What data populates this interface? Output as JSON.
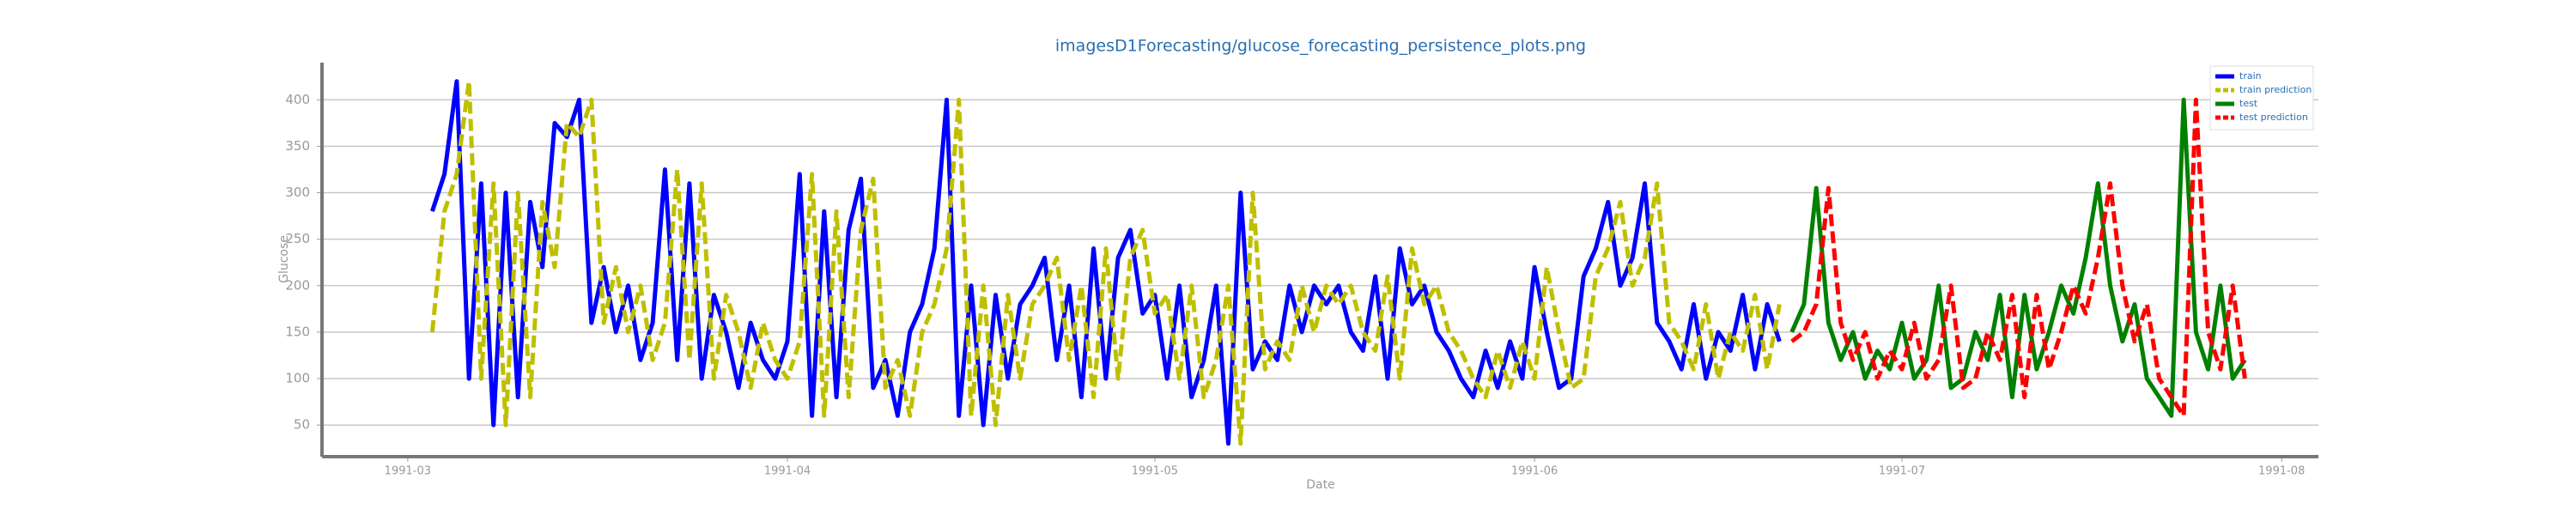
{
  "chart_data": {
    "type": "line",
    "title": "imagesD1Forecasting/glucose_forecasting_persistence_plots.png",
    "x_label": "Date",
    "y_label": "Glucose",
    "xlim": [
      "1991-02-22",
      "1991-08-04"
    ],
    "xticks": [
      {
        "value": "1991-03-01",
        "label": "1991-03"
      },
      {
        "value": "1991-04-01",
        "label": "1991-04"
      },
      {
        "value": "1991-05-01",
        "label": "1991-05"
      },
      {
        "value": "1991-06-01",
        "label": "1991-06"
      },
      {
        "value": "1991-07-01",
        "label": "1991-07"
      },
      {
        "value": "1991-08-01",
        "label": "1991-08"
      }
    ],
    "ylim": [
      16,
      440
    ],
    "yticks": [
      50,
      100,
      150,
      200,
      250,
      300,
      350,
      400
    ],
    "grid": true,
    "legend": "upper right",
    "x": [
      "1991-03-03",
      "1991-03-04",
      "1991-03-05",
      "1991-03-06",
      "1991-03-07",
      "1991-03-08",
      "1991-03-09",
      "1991-03-10",
      "1991-03-11",
      "1991-03-12",
      "1991-03-13",
      "1991-03-14",
      "1991-03-15",
      "1991-03-16",
      "1991-03-17",
      "1991-03-18",
      "1991-03-19",
      "1991-03-20",
      "1991-03-21",
      "1991-03-22",
      "1991-03-23",
      "1991-03-24",
      "1991-03-25",
      "1991-03-26",
      "1991-03-27",
      "1991-03-28",
      "1991-03-29",
      "1991-03-30",
      "1991-03-31",
      "1991-04-01",
      "1991-04-02",
      "1991-04-03",
      "1991-04-04",
      "1991-04-05",
      "1991-04-06",
      "1991-04-07",
      "1991-04-08",
      "1991-04-09",
      "1991-04-10",
      "1991-04-11",
      "1991-04-12",
      "1991-04-13",
      "1991-04-14",
      "1991-04-15",
      "1991-04-16",
      "1991-04-17",
      "1991-04-18",
      "1991-04-19",
      "1991-04-20",
      "1991-04-21",
      "1991-04-22",
      "1991-04-23",
      "1991-04-24",
      "1991-04-25",
      "1991-04-26",
      "1991-04-27",
      "1991-04-28",
      "1991-04-29",
      "1991-04-30",
      "1991-05-01",
      "1991-05-02",
      "1991-05-03",
      "1991-05-04",
      "1991-05-05",
      "1991-05-06",
      "1991-05-07",
      "1991-05-08",
      "1991-05-09",
      "1991-05-10",
      "1991-05-11",
      "1991-05-12",
      "1991-05-13",
      "1991-05-14",
      "1991-05-15",
      "1991-05-16",
      "1991-05-17",
      "1991-05-18",
      "1991-05-19",
      "1991-05-20",
      "1991-05-21",
      "1991-05-22",
      "1991-05-23",
      "1991-05-24",
      "1991-05-25",
      "1991-05-26",
      "1991-05-27",
      "1991-05-28",
      "1991-05-29",
      "1991-05-30",
      "1991-05-31",
      "1991-06-01",
      "1991-06-02",
      "1991-06-03",
      "1991-06-04",
      "1991-06-05",
      "1991-06-06",
      "1991-06-07",
      "1991-06-08",
      "1991-06-09",
      "1991-06-10",
      "1991-06-11",
      "1991-06-12",
      "1991-06-13",
      "1991-06-14",
      "1991-06-15",
      "1991-06-16",
      "1991-06-17",
      "1991-06-18",
      "1991-06-19",
      "1991-06-20",
      "1991-06-21",
      "1991-06-22",
      "1991-06-23",
      "1991-06-24",
      "1991-06-25",
      "1991-06-26",
      "1991-06-27",
      "1991-06-28",
      "1991-06-29",
      "1991-06-30",
      "1991-07-01",
      "1991-07-02",
      "1991-07-03",
      "1991-07-04",
      "1991-07-05",
      "1991-07-06",
      "1991-07-07",
      "1991-07-08",
      "1991-07-09",
      "1991-07-10",
      "1991-07-11",
      "1991-07-12",
      "1991-07-13",
      "1991-07-14",
      "1991-07-15",
      "1991-07-16",
      "1991-07-17",
      "1991-07-18",
      "1991-07-19",
      "1991-07-20",
      "1991-07-21",
      "1991-07-22",
      "1991-07-23",
      "1991-07-24",
      "1991-07-25",
      "1991-07-26",
      "1991-07-27",
      "1991-07-28",
      "1991-07-29"
    ],
    "series": [
      {
        "name": "train",
        "color": "#0000ff",
        "linestyle": "solid",
        "values": [
          280,
          320,
          420,
          100,
          310,
          50,
          300,
          80,
          290,
          220,
          375,
          360,
          400,
          160,
          220,
          150,
          200,
          120,
          160,
          325,
          120,
          310,
          100,
          190,
          150,
          90,
          160,
          120,
          100,
          140,
          320,
          60,
          280,
          80,
          260,
          315,
          90,
          120,
          60,
          150,
          180,
          240,
          400,
          60,
          200,
          50,
          190,
          100,
          180,
          200,
          230,
          120,
          200,
          80,
          240,
          100,
          230,
          260,
          170,
          190,
          100,
          200,
          80,
          120,
          200,
          30,
          300,
          110,
          140,
          120,
          200,
          150,
          200,
          180,
          200,
          150,
          130,
          210,
          100,
          240,
          180,
          200,
          150,
          130,
          100,
          80,
          130,
          90,
          140,
          100,
          220,
          150,
          90,
          100,
          210,
          240,
          290,
          200,
          230,
          310,
          160,
          140,
          110,
          180,
          100,
          150,
          130,
          190,
          110,
          180,
          140,
          null,
          null,
          null,
          null,
          null,
          null,
          null,
          null,
          null,
          null,
          null,
          null,
          null,
          null,
          null,
          null,
          null,
          null,
          null,
          null,
          null,
          null,
          null,
          null,
          null,
          null,
          null,
          null,
          null,
          null,
          null,
          null,
          null,
          null,
          null,
          null,
          null,
          null
        ]
      },
      {
        "name": "train prediction",
        "color": "#bfbf00",
        "linestyle": "dashed",
        "values": [
          150,
          280,
          320,
          420,
          100,
          310,
          50,
          300,
          80,
          290,
          220,
          375,
          360,
          400,
          160,
          220,
          150,
          200,
          120,
          160,
          325,
          120,
          310,
          100,
          190,
          150,
          90,
          160,
          120,
          100,
          140,
          320,
          60,
          280,
          80,
          260,
          315,
          90,
          120,
          60,
          150,
          180,
          240,
          400,
          60,
          200,
          50,
          190,
          100,
          180,
          200,
          230,
          120,
          200,
          80,
          240,
          100,
          230,
          260,
          170,
          190,
          100,
          200,
          80,
          120,
          200,
          30,
          300,
          110,
          140,
          120,
          200,
          150,
          200,
          180,
          200,
          150,
          130,
          210,
          100,
          240,
          180,
          200,
          150,
          130,
          100,
          80,
          130,
          90,
          140,
          100,
          220,
          150,
          90,
          100,
          210,
          240,
          290,
          200,
          230,
          310,
          160,
          140,
          110,
          180,
          100,
          150,
          130,
          190,
          110,
          180,
          null,
          null,
          null,
          null,
          null,
          null,
          null,
          null,
          null,
          null,
          null,
          null,
          null,
          null,
          null,
          null,
          null,
          null,
          null,
          null,
          null,
          null,
          null,
          null,
          null,
          null,
          null,
          null,
          null,
          null,
          null,
          null,
          null,
          null,
          null,
          null,
          null,
          null
        ]
      },
      {
        "name": "test",
        "color": "#008000",
        "linestyle": "solid",
        "values": [
          null,
          null,
          null,
          null,
          null,
          null,
          null,
          null,
          null,
          null,
          null,
          null,
          null,
          null,
          null,
          null,
          null,
          null,
          null,
          null,
          null,
          null,
          null,
          null,
          null,
          null,
          null,
          null,
          null,
          null,
          null,
          null,
          null,
          null,
          null,
          null,
          null,
          null,
          null,
          null,
          null,
          null,
          null,
          null,
          null,
          null,
          null,
          null,
          null,
          null,
          null,
          null,
          null,
          null,
          null,
          null,
          null,
          null,
          null,
          null,
          null,
          null,
          null,
          null,
          null,
          null,
          null,
          null,
          null,
          null,
          null,
          null,
          null,
          null,
          null,
          null,
          null,
          null,
          null,
          null,
          null,
          null,
          null,
          null,
          null,
          null,
          null,
          null,
          null,
          null,
          null,
          null,
          null,
          null,
          null,
          null,
          null,
          null,
          null,
          null,
          null,
          null,
          null,
          null,
          null,
          null,
          null,
          null,
          null,
          null,
          null,
          150,
          180,
          305,
          160,
          120,
          150,
          100,
          130,
          110,
          160,
          100,
          120,
          200,
          90,
          100,
          150,
          120,
          190,
          80,
          190,
          110,
          150,
          200,
          170,
          230,
          310,
          200,
          140,
          180,
          100,
          80,
          60,
          400,
          150,
          110,
          200,
          100,
          120
        ]
      },
      {
        "name": "test prediction",
        "color": "#ff0000",
        "linestyle": "dashed",
        "values": [
          null,
          null,
          null,
          null,
          null,
          null,
          null,
          null,
          null,
          null,
          null,
          null,
          null,
          null,
          null,
          null,
          null,
          null,
          null,
          null,
          null,
          null,
          null,
          null,
          null,
          null,
          null,
          null,
          null,
          null,
          null,
          null,
          null,
          null,
          null,
          null,
          null,
          null,
          null,
          null,
          null,
          null,
          null,
          null,
          null,
          null,
          null,
          null,
          null,
          null,
          null,
          null,
          null,
          null,
          null,
          null,
          null,
          null,
          null,
          null,
          null,
          null,
          null,
          null,
          null,
          null,
          null,
          null,
          null,
          null,
          null,
          null,
          null,
          null,
          null,
          null,
          null,
          null,
          null,
          null,
          null,
          null,
          null,
          null,
          null,
          null,
          null,
          null,
          null,
          null,
          null,
          null,
          null,
          null,
          null,
          null,
          null,
          null,
          null,
          null,
          null,
          null,
          null,
          null,
          null,
          null,
          null,
          null,
          null,
          null,
          null,
          140,
          150,
          180,
          305,
          160,
          120,
          150,
          100,
          130,
          110,
          160,
          100,
          120,
          200,
          90,
          100,
          150,
          120,
          190,
          80,
          190,
          110,
          150,
          200,
          170,
          230,
          310,
          200,
          140,
          180,
          100,
          80,
          60,
          400,
          150,
          110,
          200,
          100
        ]
      }
    ]
  }
}
